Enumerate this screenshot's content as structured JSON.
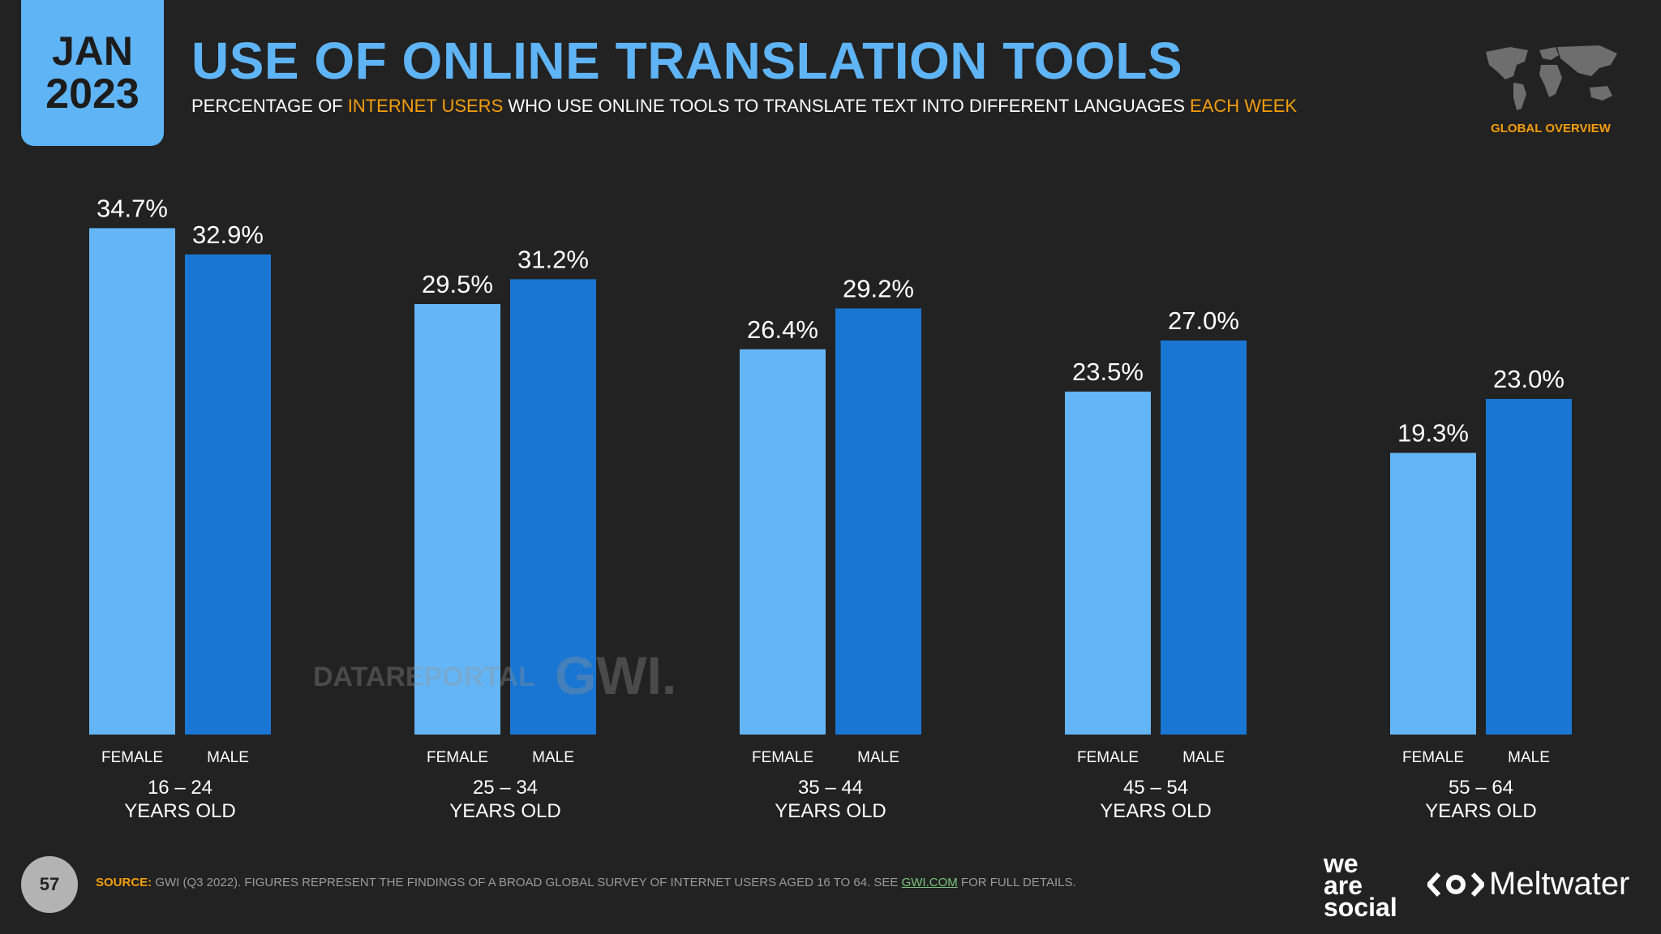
{
  "header": {
    "date_month": "JAN",
    "date_year": "2023",
    "title": "USE OF ONLINE TRANSLATION TOOLS",
    "subtitle_parts": [
      "PERCENTAGE OF ",
      "INTERNET USERS",
      " WHO USE ONLINE TOOLS TO TRANSLATE TEXT INTO DIFFERENT LANGUAGES ",
      "EACH WEEK"
    ],
    "overview_label": "GLOBAL OVERVIEW"
  },
  "colors": {
    "background": "#222222",
    "accent": "#5fb4f6",
    "highlight": "#f59e0b",
    "female": "#64b5f6",
    "male": "#1976d2"
  },
  "chart_data": {
    "type": "bar",
    "categories": [
      "16 – 24|YEARS OLD",
      "25 – 34|YEARS OLD",
      "35 – 44|YEARS OLD",
      "45 – 54|YEARS OLD",
      "55 – 64|YEARS OLD"
    ],
    "category_lines": [
      [
        "16 – 24",
        "YEARS OLD"
      ],
      [
        "25 – 34",
        "YEARS OLD"
      ],
      [
        "35 – 44",
        "YEARS OLD"
      ],
      [
        "45 – 54",
        "YEARS OLD"
      ],
      [
        "55 – 64",
        "YEARS OLD"
      ]
    ],
    "series": [
      {
        "name": "FEMALE",
        "values": [
          34.7,
          29.5,
          26.4,
          23.5,
          19.3
        ],
        "labels": [
          "34.7%",
          "29.5%",
          "26.4%",
          "23.5%",
          "19.3%"
        ],
        "color": "#64b5f6"
      },
      {
        "name": "MALE",
        "values": [
          32.9,
          31.2,
          29.2,
          27.0,
          23.0
        ],
        "labels": [
          "32.9%",
          "31.2%",
          "29.2%",
          "27.0%",
          "23.0%"
        ],
        "color": "#1976d2"
      }
    ],
    "ylim": [
      0,
      35
    ],
    "grid": false
  },
  "watermark": {
    "datareportal": "DATAREPORTAL",
    "gwi": "GWI."
  },
  "footer": {
    "page_number": "57",
    "source_label": "SOURCE:",
    "source_text": " GWI (Q3 2022). FIGURES REPRESENT THE FINDINGS OF A BROAD GLOBAL SURVEY OF INTERNET USERS AGED 16 TO 64. SEE ",
    "source_link": "GWI.COM",
    "source_tail": " FOR FULL DETAILS.",
    "brand_was": [
      "we",
      "are",
      "social"
    ],
    "brand_meltwater": "Meltwater"
  }
}
